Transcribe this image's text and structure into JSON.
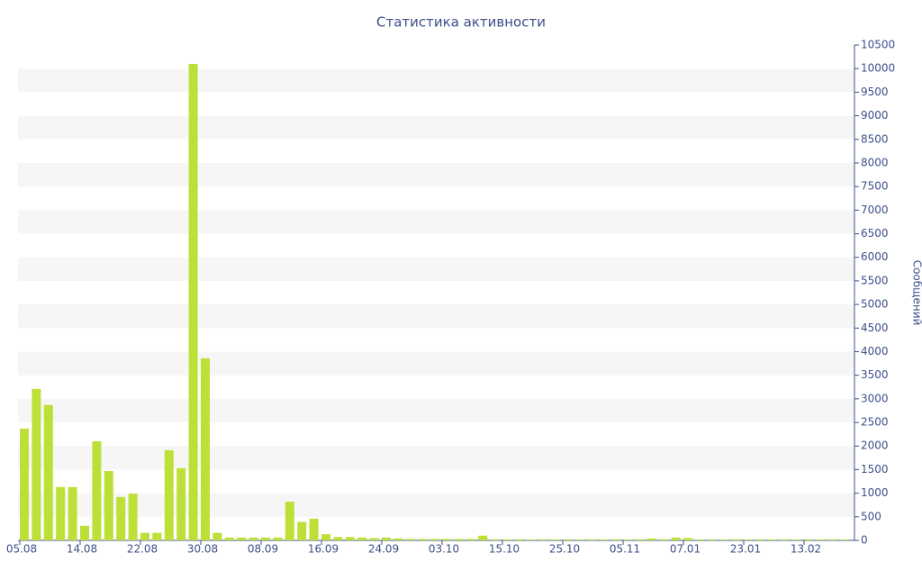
{
  "chart_data": {
    "type": "bar",
    "title": "Статистика активности",
    "y_label": "Сообщений",
    "categories": [
      "05.08",
      null,
      null,
      null,
      null,
      "14.08",
      null,
      null,
      null,
      null,
      "22.08",
      null,
      null,
      null,
      null,
      "30.08",
      null,
      null,
      null,
      null,
      "08.09",
      null,
      null,
      null,
      null,
      "16.09",
      null,
      null,
      null,
      null,
      "24.09",
      null,
      null,
      null,
      null,
      "03.10",
      null,
      null,
      null,
      null,
      "15.10",
      null,
      null,
      null,
      null,
      "25.10",
      null,
      null,
      null,
      null,
      "05.11",
      null,
      null,
      null,
      null,
      "07.01",
      null,
      null,
      null,
      null,
      "23.01",
      null,
      null,
      null,
      null,
      "13.02",
      null,
      null,
      null
    ],
    "values": [
      2370,
      3210,
      2870,
      1130,
      1130,
      310,
      2100,
      1470,
      920,
      990,
      160,
      160,
      1910,
      1530,
      10100,
      3860,
      160,
      60,
      60,
      60,
      60,
      60,
      820,
      390,
      460,
      130,
      70,
      70,
      60,
      50,
      60,
      40,
      30,
      30,
      30,
      30,
      30,
      30,
      100,
      20,
      20,
      20,
      20,
      20,
      20,
      20,
      20,
      20,
      20,
      20,
      20,
      20,
      40,
      20,
      60,
      50,
      20,
      20,
      20,
      20,
      20,
      20,
      20,
      20,
      20,
      20,
      20,
      20,
      20
    ],
    "color": "#bde038",
    "ylim": [
      0,
      10500
    ],
    "yticks": [
      0,
      500,
      1000,
      1500,
      2000,
      2500,
      3000,
      3500,
      4000,
      4500,
      5000,
      5500,
      6000,
      6500,
      7000,
      7500,
      8000,
      8500,
      9000,
      9500,
      10000,
      10500
    ],
    "grid": "bands",
    "y_axis_side": "right"
  }
}
